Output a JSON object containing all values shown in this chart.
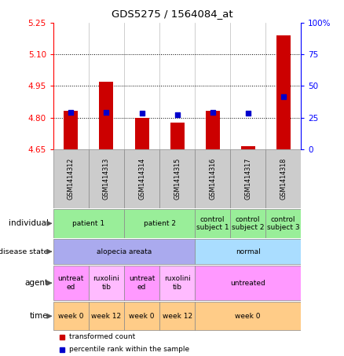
{
  "title": "GDS5275 / 1564084_at",
  "samples": [
    "GSM1414312",
    "GSM1414313",
    "GSM1414314",
    "GSM1414315",
    "GSM1414316",
    "GSM1414317",
    "GSM1414318"
  ],
  "bar_values": [
    4.832,
    4.97,
    4.8,
    4.775,
    4.832,
    4.665,
    5.19
  ],
  "bar_bottom": 4.65,
  "dot_y_values": [
    4.825,
    4.825,
    4.82,
    4.815,
    4.825,
    4.82,
    4.9
  ],
  "ylim_left": [
    4.65,
    5.25
  ],
  "ylim_right": [
    0,
    100
  ],
  "yticks_left": [
    4.65,
    4.8,
    4.95,
    5.1,
    5.25
  ],
  "yticks_right": [
    0,
    25,
    50,
    75,
    100
  ],
  "bar_color": "#cc0000",
  "dot_color": "#0000cc",
  "background_color": "#ffffff",
  "gsm_bg_color": "#cccccc",
  "individual_color": "#99ee99",
  "disease_color_alopecia": "#aaaaee",
  "disease_color_normal": "#aaddff",
  "agent_color_untreated": "#ff99ff",
  "agent_color_ruxolitinib": "#ffbbff",
  "time_color": "#ffcc88",
  "legend_bar_label": "transformed count",
  "legend_dot_label": "percentile rank within the sample"
}
